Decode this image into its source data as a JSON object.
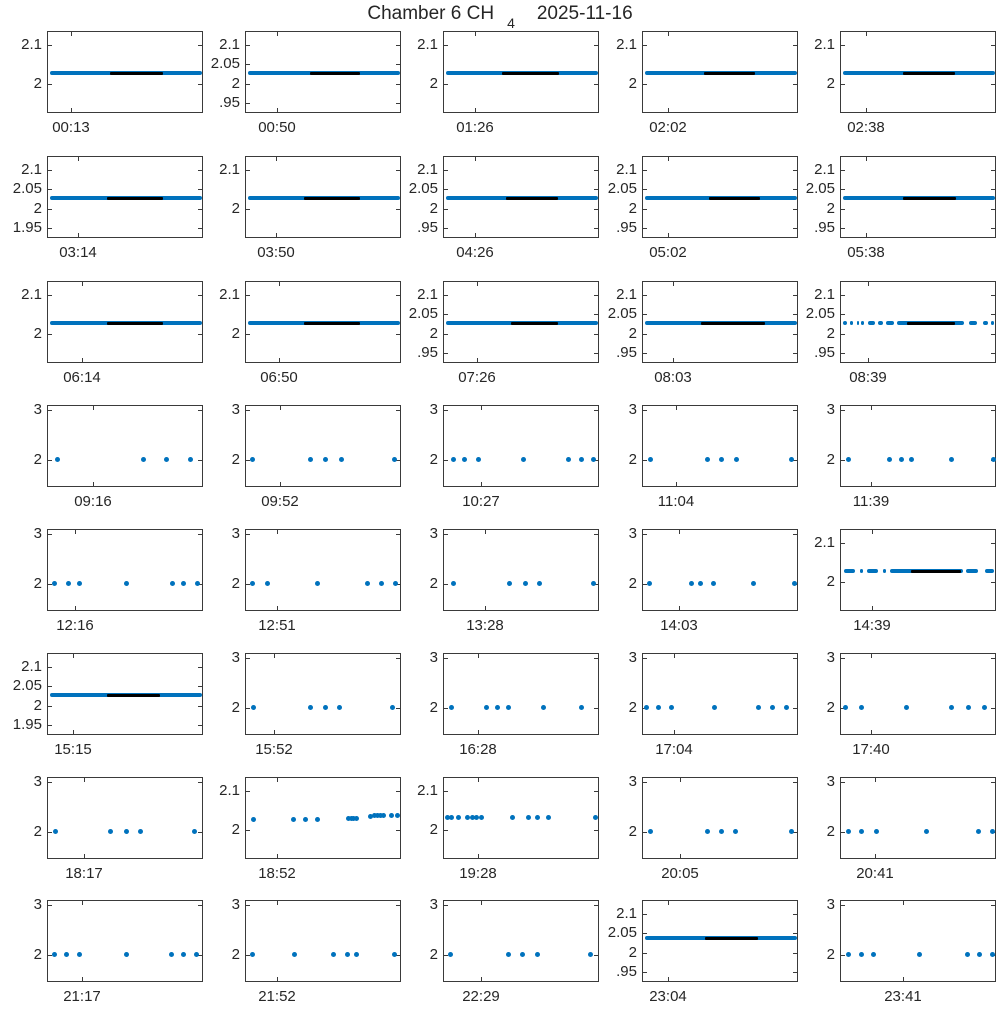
{
  "title": {
    "prefix": "Chamber 6 CH",
    "subscript": "4",
    "date": "2025-11-16"
  },
  "colors": {
    "data_blue": "#0072BD",
    "flagged_black": "#000000",
    "axis": "#3a3a3a",
    "text": "#262626",
    "background": "#ffffff"
  },
  "chart_data": {
    "type": "scatter",
    "title": "Chamber 6 CH_4  2025-11-16",
    "grid": {
      "rows": 8,
      "cols": 5
    },
    "legend": "none",
    "notes": "40 subplots of CH4 concentration vs time; blue dots = measurements (~2.03), black overlay segment = flagged/fit interval; each subplot labeled with its start time tick",
    "axis_types": {
      "A": {
        "labels": [
          "2.1",
          "2"
        ],
        "fracs": [
          0.167,
          0.643
        ],
        "ylim": [
          1.925,
          2.135
        ],
        "tick_values": [
          2.1,
          2
        ]
      },
      "B": {
        "labels": [
          "2.1",
          "2.05",
          "2",
          "1.95"
        ],
        "fracs": [
          0.167,
          0.405,
          0.643,
          0.881
        ],
        "ylim": [
          1.925,
          2.135
        ],
        "tick_values": [
          2.1,
          2.05,
          2,
          1.95
        ]
      },
      "B2": {
        "labels": [
          "2.1",
          "2.05",
          "2",
          ".95"
        ],
        "fracs": [
          0.167,
          0.405,
          0.643,
          0.881
        ],
        "ylim": [
          1.925,
          2.135
        ],
        "tick_values": [
          2.1,
          2.05,
          2,
          1.95
        ]
      },
      "C": {
        "labels": [
          "3",
          "2"
        ],
        "fracs": [
          0.055,
          0.669
        ],
        "ylim": [
          1.46,
          3.09
        ],
        "tick_values": [
          3,
          2
        ]
      }
    },
    "subplots": [
      {
        "time": "00:13",
        "axis": "A",
        "xtick": 0.15,
        "series": {
          "kind": "dense",
          "value": 2.03,
          "y": 0.5,
          "band": [
            0.015,
            0.985
          ],
          "black": [
            0.4,
            0.74
          ]
        }
      },
      {
        "time": "00:50",
        "axis": "B2",
        "xtick": 0.2,
        "series": {
          "kind": "dense",
          "value": 2.03,
          "y": 0.5,
          "band": [
            0.015,
            0.985
          ],
          "black": [
            0.41,
            0.73
          ]
        }
      },
      {
        "time": "01:26",
        "axis": "A",
        "xtick": 0.2,
        "series": {
          "kind": "dense",
          "value": 2.03,
          "y": 0.5,
          "band": [
            0.015,
            0.985
          ],
          "black": [
            0.37,
            0.74
          ]
        }
      },
      {
        "time": "02:02",
        "axis": "A",
        "xtick": 0.16,
        "series": {
          "kind": "dense",
          "value": 2.03,
          "y": 0.5,
          "band": [
            0.015,
            0.985
          ],
          "black": [
            0.39,
            0.72
          ]
        }
      },
      {
        "time": "02:38",
        "axis": "A",
        "xtick": 0.16,
        "series": {
          "kind": "dense",
          "value": 2.03,
          "y": 0.5,
          "band": [
            0.015,
            0.985
          ],
          "black": [
            0.4,
            0.73
          ]
        }
      },
      {
        "time": "03:14",
        "axis": "B",
        "xtick": 0.19,
        "series": {
          "kind": "dense",
          "value": 2.03,
          "y": 0.5,
          "band": [
            0.015,
            0.985
          ],
          "black": [
            0.38,
            0.74
          ]
        }
      },
      {
        "time": "03:50",
        "axis": "A",
        "xtick": 0.19,
        "series": {
          "kind": "dense",
          "value": 2.03,
          "y": 0.5,
          "band": [
            0.015,
            0.985
          ],
          "black": [
            0.37,
            0.73
          ]
        }
      },
      {
        "time": "04:26",
        "axis": "B2",
        "xtick": 0.2,
        "series": {
          "kind": "dense",
          "value": 2.03,
          "y": 0.5,
          "band": [
            0.015,
            0.985
          ],
          "black": [
            0.4,
            0.73
          ]
        }
      },
      {
        "time": "05:02",
        "axis": "B2",
        "xtick": 0.16,
        "series": {
          "kind": "dense",
          "value": 2.03,
          "y": 0.5,
          "band": [
            0.015,
            0.985
          ],
          "black": [
            0.42,
            0.75
          ]
        }
      },
      {
        "time": "05:38",
        "axis": "B2",
        "xtick": 0.16,
        "series": {
          "kind": "dense",
          "value": 2.03,
          "y": 0.5,
          "band": [
            0.015,
            0.985
          ],
          "black": [
            0.4,
            0.74
          ]
        }
      },
      {
        "time": "06:14",
        "axis": "A",
        "xtick": 0.22,
        "series": {
          "kind": "dense",
          "value": 2.03,
          "y": 0.5,
          "band": [
            0.015,
            0.985
          ],
          "black": [
            0.38,
            0.74
          ]
        }
      },
      {
        "time": "06:50",
        "axis": "A",
        "xtick": 0.21,
        "series": {
          "kind": "dense",
          "value": 2.03,
          "y": 0.5,
          "band": [
            0.015,
            0.985
          ],
          "black": [
            0.37,
            0.73
          ]
        }
      },
      {
        "time": "07:26",
        "axis": "B2",
        "xtick": 0.21,
        "series": {
          "kind": "dense",
          "value": 2.03,
          "y": 0.5,
          "band": [
            0.015,
            0.985
          ],
          "black": [
            0.43,
            0.73
          ]
        }
      },
      {
        "time": "08:03",
        "axis": "B2",
        "xtick": 0.19,
        "series": {
          "kind": "dense",
          "value": 2.03,
          "y": 0.5,
          "band": [
            0.015,
            0.985
          ],
          "black": [
            0.37,
            0.78
          ]
        }
      },
      {
        "time": "08:39",
        "axis": "B2",
        "xtick": 0.17,
        "series": {
          "kind": "clusters",
          "value": 2.03,
          "y": 0.5,
          "segs": [
            [
              0.01,
              0.04
            ],
            [
              0.06,
              0.08
            ],
            [
              0.1,
              0.11
            ],
            [
              0.13,
              0.15
            ],
            [
              0.17,
              0.22
            ],
            [
              0.24,
              0.27
            ],
            [
              0.29,
              0.34
            ],
            [
              0.36,
              0.79
            ],
            [
              0.82,
              0.87
            ],
            [
              0.91,
              0.94
            ],
            [
              0.96,
              0.98
            ]
          ],
          "black": [
            0.42,
            0.73
          ]
        }
      },
      {
        "time": "09:16",
        "axis": "C",
        "xtick": 0.29,
        "series": {
          "kind": "dots",
          "value": 2.03,
          "y": 0.65,
          "x": [
            0.06,
            0.61,
            0.76,
            0.91
          ]
        }
      },
      {
        "time": "09:52",
        "axis": "C",
        "xtick": 0.22,
        "series": {
          "kind": "dots",
          "value": 2.03,
          "y": 0.65,
          "x": [
            0.04,
            0.41,
            0.51,
            0.61,
            0.95
          ]
        }
      },
      {
        "time": "10:27",
        "axis": "C",
        "xtick": 0.24,
        "series": {
          "kind": "dots",
          "value": 2.03,
          "y": 0.65,
          "x": [
            0.06,
            0.13,
            0.22,
            0.51,
            0.8,
            0.88,
            0.96
          ]
        }
      },
      {
        "time": "11:04",
        "axis": "C",
        "xtick": 0.21,
        "series": {
          "kind": "dots",
          "value": 2.03,
          "y": 0.65,
          "x": [
            0.05,
            0.41,
            0.5,
            0.6,
            0.95
          ]
        }
      },
      {
        "time": "11:39",
        "axis": "C",
        "xtick": 0.19,
        "series": {
          "kind": "dots",
          "value": 2.03,
          "y": 0.65,
          "x": [
            0.05,
            0.31,
            0.39,
            0.45,
            0.71,
            0.98
          ]
        }
      },
      {
        "time": "12:16",
        "axis": "C",
        "xtick": 0.17,
        "series": {
          "kind": "dots",
          "value": 2.03,
          "y": 0.65,
          "x": [
            0.04,
            0.13,
            0.2,
            0.5,
            0.8,
            0.87,
            0.96
          ]
        }
      },
      {
        "time": "12:51",
        "axis": "C",
        "xtick": 0.2,
        "series": {
          "kind": "dots",
          "value": 2.03,
          "y": 0.65,
          "x": [
            0.04,
            0.14,
            0.46,
            0.78,
            0.87,
            0.96
          ]
        }
      },
      {
        "time": "13:28",
        "axis": "C",
        "xtick": 0.26,
        "series": {
          "kind": "dots",
          "value": 2.03,
          "y": 0.65,
          "x": [
            0.06,
            0.42,
            0.52,
            0.61,
            0.96
          ]
        }
      },
      {
        "time": "14:03",
        "axis": "C",
        "xtick": 0.23,
        "series": {
          "kind": "dots",
          "value": 2.03,
          "y": 0.65,
          "x": [
            0.04,
            0.31,
            0.37,
            0.45,
            0.71,
            0.97
          ]
        }
      },
      {
        "time": "14:39",
        "axis": "A",
        "xtick": 0.2,
        "series": {
          "kind": "clusters",
          "value": 2.03,
          "y": 0.5,
          "segs": [
            [
              0.02,
              0.09
            ],
            [
              0.12,
              0.14
            ],
            [
              0.165,
              0.24
            ],
            [
              0.27,
              0.29
            ],
            [
              0.315,
              0.78
            ],
            [
              0.8,
              0.88
            ],
            [
              0.92,
              0.98
            ]
          ],
          "black": [
            0.45,
            0.77
          ]
        }
      },
      {
        "time": "15:15",
        "axis": "B",
        "xtick": 0.16,
        "series": {
          "kind": "dense",
          "value": 2.03,
          "y": 0.5,
          "band": [
            0.015,
            0.985
          ],
          "black": [
            0.38,
            0.72
          ]
        }
      },
      {
        "time": "15:52",
        "axis": "C",
        "xtick": 0.18,
        "series": {
          "kind": "dots",
          "value": 2.03,
          "y": 0.65,
          "x": [
            0.05,
            0.41,
            0.51,
            0.6,
            0.94
          ]
        }
      },
      {
        "time": "16:28",
        "axis": "C",
        "xtick": 0.22,
        "series": {
          "kind": "dots",
          "value": 2.03,
          "y": 0.65,
          "x": [
            0.05,
            0.27,
            0.34,
            0.41,
            0.64,
            0.88
          ]
        }
      },
      {
        "time": "17:04",
        "axis": "C",
        "xtick": 0.2,
        "series": {
          "kind": "dots",
          "value": 2.03,
          "y": 0.65,
          "x": [
            0.02,
            0.1,
            0.18,
            0.46,
            0.74,
            0.83,
            0.92
          ]
        }
      },
      {
        "time": "17:40",
        "axis": "C",
        "xtick": 0.19,
        "series": {
          "kind": "dots",
          "value": 2.03,
          "y": 0.65,
          "x": [
            0.03,
            0.13,
            0.42,
            0.71,
            0.82,
            0.92
          ]
        }
      },
      {
        "time": "18:17",
        "axis": "C",
        "xtick": 0.23,
        "series": {
          "kind": "dots",
          "value": 2.03,
          "y": 0.65,
          "x": [
            0.05,
            0.4,
            0.5,
            0.59,
            0.94
          ]
        }
      },
      {
        "time": "18:52",
        "axis": "A",
        "xtick": 0.2,
        "series": {
          "kind": "points",
          "value_range": [
            2.03,
            2.04
          ],
          "pts": [
            [
              0.045,
              0.5
            ],
            [
              0.305,
              0.5
            ],
            [
              0.38,
              0.5
            ],
            [
              0.46,
              0.5
            ],
            [
              0.655,
              0.49
            ],
            [
              0.675,
              0.49
            ],
            [
              0.69,
              0.49
            ],
            [
              0.705,
              0.49
            ],
            [
              0.8,
              0.465
            ],
            [
              0.825,
              0.46
            ],
            [
              0.845,
              0.46
            ],
            [
              0.86,
              0.46
            ],
            [
              0.878,
              0.46
            ],
            [
              0.935,
              0.46
            ],
            [
              0.97,
              0.46
            ]
          ]
        }
      },
      {
        "time": "19:28",
        "axis": "A",
        "xtick": 0.22,
        "series": {
          "kind": "points",
          "value_range": [
            2.03,
            2.04
          ],
          "pts": [
            [
              0.02,
              0.48
            ],
            [
              0.05,
              0.48
            ],
            [
              0.09,
              0.48
            ],
            [
              0.15,
              0.48
            ],
            [
              0.18,
              0.48
            ],
            [
              0.21,
              0.48
            ],
            [
              0.24,
              0.48
            ],
            [
              0.44,
              0.48
            ],
            [
              0.54,
              0.48
            ],
            [
              0.6,
              0.48
            ],
            [
              0.67,
              0.48
            ],
            [
              0.97,
              0.48
            ]
          ]
        }
      },
      {
        "time": "20:05",
        "axis": "C",
        "xtick": 0.24,
        "series": {
          "kind": "dots",
          "value": 2.03,
          "y": 0.65,
          "x": [
            0.05,
            0.41,
            0.5,
            0.59,
            0.95
          ]
        }
      },
      {
        "time": "20:41",
        "axis": "C",
        "xtick": 0.22,
        "series": {
          "kind": "dots",
          "value": 2.03,
          "y": 0.65,
          "x": [
            0.05,
            0.13,
            0.23,
            0.55,
            0.88,
            0.97
          ]
        }
      },
      {
        "time": "21:17",
        "axis": "C",
        "xtick": 0.22,
        "series": {
          "kind": "dots",
          "value": 2.03,
          "y": 0.65,
          "x": [
            0.04,
            0.12,
            0.2,
            0.5,
            0.79,
            0.87,
            0.95
          ]
        }
      },
      {
        "time": "21:52",
        "axis": "C",
        "xtick": 0.2,
        "series": {
          "kind": "dots",
          "value": 2.03,
          "y": 0.65,
          "x": [
            0.04,
            0.31,
            0.56,
            0.65,
            0.71,
            0.95
          ]
        }
      },
      {
        "time": "22:29",
        "axis": "C",
        "xtick": 0.24,
        "series": {
          "kind": "dots",
          "value": 2.03,
          "y": 0.65,
          "x": [
            0.04,
            0.41,
            0.5,
            0.6,
            0.94
          ]
        }
      },
      {
        "time": "23:04",
        "axis": "B2",
        "xtick": 0.16,
        "series": {
          "kind": "dense",
          "value": 2.04,
          "y": 0.452,
          "band": [
            0.015,
            0.985
          ],
          "black": [
            0.4,
            0.74
          ]
        }
      },
      {
        "time": "23:41",
        "axis": "C",
        "xtick": 0.4,
        "series": {
          "kind": "dots",
          "value": 2.03,
          "y": 0.65,
          "x": [
            0.05,
            0.13,
            0.21,
            0.5,
            0.81,
            0.89,
            0.97
          ]
        }
      }
    ]
  }
}
